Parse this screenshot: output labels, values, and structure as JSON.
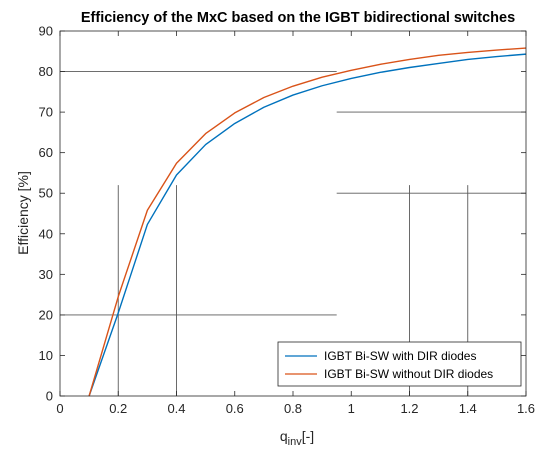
{
  "chart_data": {
    "type": "line",
    "title": "Efficiency of the MxC based on the IGBT bidirectional switches",
    "xlabel_main": "q",
    "xlabel_sub": "inv",
    "xlabel_suffix": "[-]",
    "ylabel": "Efficiency [%]",
    "xlim": [
      0,
      1.6
    ],
    "ylim": [
      0,
      90
    ],
    "xticks": [
      0,
      0.2,
      0.4,
      0.6,
      0.8,
      1,
      1.2,
      1.4,
      1.6
    ],
    "yticks": [
      0,
      10,
      20,
      30,
      40,
      50,
      60,
      70,
      80,
      90
    ],
    "xtick_labels": [
      "0",
      "0.2",
      "0.4",
      "0.6",
      "0.8",
      "1",
      "1.2",
      "1.4",
      "1.6"
    ],
    "ytick_labels": [
      "0",
      "10",
      "20",
      "30",
      "40",
      "50",
      "60",
      "70",
      "80",
      "90"
    ],
    "legend_position": "bottom-right",
    "series": [
      {
        "name": "IGBT Bi-SW with DIR diodes",
        "color": "#0072BD",
        "x": [
          0.1,
          0.2,
          0.3,
          0.4,
          0.5,
          0.6,
          0.7,
          0.8,
          0.9,
          1.0,
          1.1,
          1.2,
          1.3,
          1.4,
          1.5,
          1.6
        ],
        "y": [
          0,
          20.5,
          42.3,
          54.5,
          62,
          67.2,
          71.2,
          74.2,
          76.5,
          78.3,
          79.8,
          81,
          82,
          83,
          83.7,
          84.3
        ]
      },
      {
        "name": "IGBT Bi-SW without DIR diodes",
        "color": "#D95319",
        "x": [
          0.1,
          0.2,
          0.3,
          0.4,
          0.5,
          0.6,
          0.7,
          0.8,
          0.9,
          1.0,
          1.1,
          1.2,
          1.3,
          1.4,
          1.5,
          1.6
        ],
        "y": [
          0,
          24.5,
          45.8,
          57.4,
          64.7,
          69.8,
          73.6,
          76.4,
          78.6,
          80.3,
          81.8,
          83,
          84,
          84.7,
          85.3,
          85.8
        ]
      }
    ],
    "reference_lines": [
      {
        "x": [
          0.2,
          0.2
        ],
        "y": [
          0,
          52
        ]
      },
      {
        "x": [
          0.4,
          0.4
        ],
        "y": [
          0,
          52
        ]
      },
      {
        "x": [
          1.2,
          1.2
        ],
        "y": [
          0,
          52
        ]
      },
      {
        "x": [
          1.4,
          1.4
        ],
        "y": [
          0,
          52
        ]
      },
      {
        "x": [
          0,
          0.95
        ],
        "y": [
          20,
          20
        ]
      },
      {
        "x": [
          0,
          0.95
        ],
        "y": [
          80,
          80
        ]
      },
      {
        "x": [
          0.95,
          1.6
        ],
        "y": [
          50,
          50
        ]
      },
      {
        "x": [
          0.95,
          1.6
        ],
        "y": [
          70,
          70
        ]
      }
    ],
    "colors": {
      "reference_line": "#5a5a5a",
      "axes": "#262626",
      "legend_border": "#262626"
    }
  }
}
